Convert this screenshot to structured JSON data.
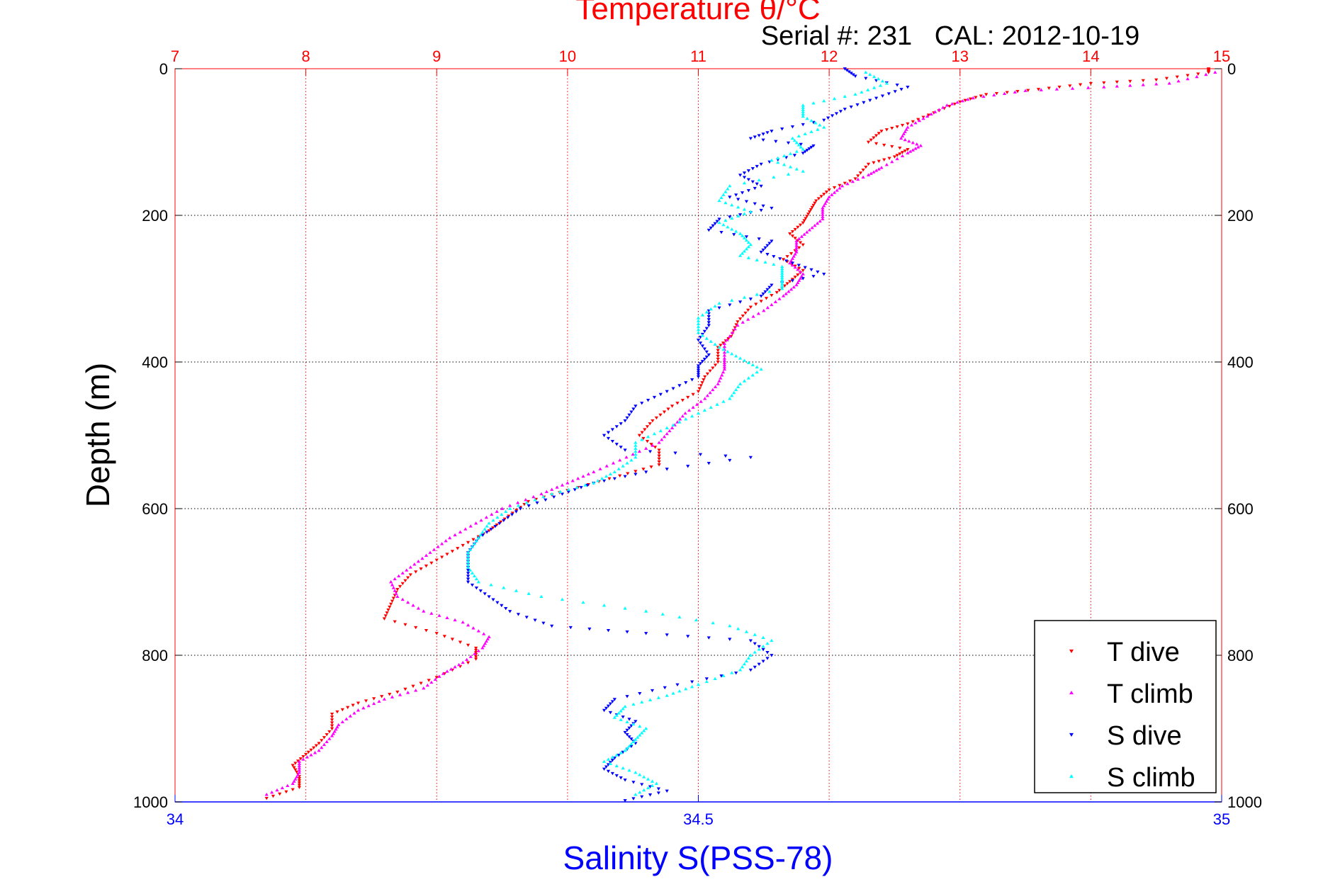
{
  "chart_data": {
    "type": "scatter",
    "title": "Temperature θ/°C",
    "subtitle": "Serial #: 231   CAL: 2012-10-19",
    "ylabel": "Depth (m)",
    "xlabel": "Salinity S(PSS-78)",
    "y_range": [
      0,
      1000
    ],
    "y_reversed": true,
    "y_ticks": [
      0,
      200,
      400,
      600,
      800,
      1000
    ],
    "temperature_axis": {
      "range": [
        7,
        15
      ],
      "ticks": [
        7,
        8,
        9,
        10,
        11,
        12,
        13,
        14,
        15
      ],
      "position": "top",
      "color": "#ff0000"
    },
    "salinity_axis": {
      "range": [
        34,
        35
      ],
      "ticks": [
        34,
        34.5,
        35
      ],
      "tick_labels": [
        "34",
        "34.5",
        "35"
      ],
      "position": "bottom",
      "color": "#0000ff"
    },
    "grid": true,
    "legend_position": "bottom-right",
    "series": [
      {
        "name": "T dive",
        "axis": "temperature",
        "color": "#ff0000",
        "marker": "triangle-down",
        "points": [
          [
            14.9,
            0
          ],
          [
            14.9,
            5
          ],
          [
            14.5,
            15
          ],
          [
            14.0,
            20
          ],
          [
            13.6,
            28
          ],
          [
            13.2,
            35
          ],
          [
            13.0,
            45
          ],
          [
            12.8,
            60
          ],
          [
            12.6,
            75
          ],
          [
            12.4,
            85
          ],
          [
            12.3,
            100
          ],
          [
            12.6,
            110
          ],
          [
            12.5,
            120
          ],
          [
            12.3,
            130
          ],
          [
            12.2,
            150
          ],
          [
            12.0,
            165
          ],
          [
            11.9,
            180
          ],
          [
            11.85,
            195
          ],
          [
            11.8,
            210
          ],
          [
            11.7,
            225
          ],
          [
            11.8,
            240
          ],
          [
            11.65,
            260
          ],
          [
            11.8,
            275
          ],
          [
            11.7,
            290
          ],
          [
            11.6,
            305
          ],
          [
            11.4,
            325
          ],
          [
            11.3,
            345
          ],
          [
            11.25,
            365
          ],
          [
            11.15,
            380
          ],
          [
            11.15,
            400
          ],
          [
            11.05,
            420
          ],
          [
            11.0,
            440
          ],
          [
            10.8,
            460
          ],
          [
            10.65,
            480
          ],
          [
            10.55,
            500
          ],
          [
            10.7,
            520
          ],
          [
            10.7,
            540
          ],
          [
            10.4,
            555
          ],
          [
            10.0,
            575
          ],
          [
            9.7,
            590
          ],
          [
            9.55,
            610
          ],
          [
            9.4,
            630
          ],
          [
            9.2,
            650
          ],
          [
            9.0,
            670
          ],
          [
            8.8,
            690
          ],
          [
            8.7,
            710
          ],
          [
            8.65,
            730
          ],
          [
            8.6,
            750
          ],
          [
            9.0,
            770
          ],
          [
            9.3,
            790
          ],
          [
            9.3,
            805
          ],
          [
            9.0,
            830
          ],
          [
            8.7,
            850
          ],
          [
            8.4,
            865
          ],
          [
            8.2,
            880
          ],
          [
            8.2,
            900
          ],
          [
            8.1,
            920
          ],
          [
            8.0,
            935
          ],
          [
            7.9,
            950
          ],
          [
            7.95,
            965
          ],
          [
            7.95,
            980
          ],
          [
            7.7,
            995
          ]
        ]
      },
      {
        "name": "T climb",
        "axis": "temperature",
        "color": "#ff00ff",
        "marker": "triangle-up",
        "points": [
          [
            14.95,
            5
          ],
          [
            14.6,
            20
          ],
          [
            14.1,
            25
          ],
          [
            13.5,
            30
          ],
          [
            13.1,
            40
          ],
          [
            12.9,
            50
          ],
          [
            12.75,
            65
          ],
          [
            12.6,
            80
          ],
          [
            12.55,
            95
          ],
          [
            12.7,
            105
          ],
          [
            12.6,
            115
          ],
          [
            12.4,
            135
          ],
          [
            12.3,
            145
          ],
          [
            12.1,
            160
          ],
          [
            12.0,
            175
          ],
          [
            11.95,
            190
          ],
          [
            11.95,
            205
          ],
          [
            11.85,
            220
          ],
          [
            11.75,
            235
          ],
          [
            11.75,
            250
          ],
          [
            11.7,
            265
          ],
          [
            11.8,
            280
          ],
          [
            11.75,
            295
          ],
          [
            11.65,
            310
          ],
          [
            11.5,
            330
          ],
          [
            11.3,
            350
          ],
          [
            11.2,
            375
          ],
          [
            11.2,
            395
          ],
          [
            11.2,
            410
          ],
          [
            11.15,
            430
          ],
          [
            11.05,
            450
          ],
          [
            10.9,
            470
          ],
          [
            10.8,
            490
          ],
          [
            10.7,
            510
          ],
          [
            10.45,
            530
          ],
          [
            10.2,
            550
          ],
          [
            10.0,
            565
          ],
          [
            9.8,
            580
          ],
          [
            9.5,
            600
          ],
          [
            9.3,
            620
          ],
          [
            9.1,
            640
          ],
          [
            8.95,
            660
          ],
          [
            8.8,
            680
          ],
          [
            8.65,
            700
          ],
          [
            8.7,
            720
          ],
          [
            8.9,
            740
          ],
          [
            9.2,
            755
          ],
          [
            9.4,
            775
          ],
          [
            9.35,
            790
          ],
          [
            9.2,
            810
          ],
          [
            9.05,
            825
          ],
          [
            8.9,
            845
          ],
          [
            8.6,
            860
          ],
          [
            8.4,
            875
          ],
          [
            8.25,
            895
          ],
          [
            8.2,
            910
          ],
          [
            8.1,
            930
          ],
          [
            7.95,
            945
          ],
          [
            7.95,
            960
          ],
          [
            7.9,
            975
          ],
          [
            7.7,
            990
          ]
        ]
      },
      {
        "name": "S dive",
        "axis": "salinity",
        "color": "#0000ff",
        "marker": "triangle-down",
        "points": [
          [
            34.64,
            0
          ],
          [
            34.65,
            10
          ],
          [
            34.7,
            25
          ],
          [
            34.67,
            40
          ],
          [
            34.64,
            55
          ],
          [
            34.62,
            70
          ],
          [
            34.57,
            85
          ],
          [
            34.55,
            95
          ],
          [
            34.61,
            105
          ],
          [
            34.6,
            115
          ],
          [
            34.56,
            130
          ],
          [
            34.54,
            145
          ],
          [
            34.56,
            160
          ],
          [
            34.53,
            175
          ],
          [
            34.57,
            190
          ],
          [
            34.52,
            205
          ],
          [
            34.51,
            220
          ],
          [
            34.57,
            235
          ],
          [
            34.56,
            250
          ],
          [
            34.59,
            265
          ],
          [
            34.62,
            280
          ],
          [
            34.57,
            295
          ],
          [
            34.56,
            310
          ],
          [
            34.51,
            330
          ],
          [
            34.51,
            350
          ],
          [
            34.5,
            370
          ],
          [
            34.51,
            390
          ],
          [
            34.5,
            405
          ],
          [
            34.5,
            420
          ],
          [
            34.47,
            440
          ],
          [
            34.44,
            460
          ],
          [
            34.43,
            480
          ],
          [
            34.41,
            500
          ],
          [
            34.43,
            520
          ],
          [
            34.55,
            530
          ],
          [
            34.45,
            550
          ],
          [
            34.4,
            565
          ],
          [
            34.37,
            580
          ],
          [
            34.33,
            600
          ],
          [
            34.31,
            620
          ],
          [
            34.29,
            640
          ],
          [
            34.28,
            660
          ],
          [
            34.28,
            680
          ],
          [
            34.28,
            700
          ],
          [
            34.3,
            720
          ],
          [
            34.32,
            740
          ],
          [
            34.36,
            760
          ],
          [
            34.45,
            770
          ],
          [
            34.55,
            780
          ],
          [
            34.57,
            800
          ],
          [
            34.55,
            820
          ],
          [
            34.48,
            840
          ],
          [
            34.42,
            860
          ],
          [
            34.41,
            875
          ],
          [
            34.44,
            890
          ],
          [
            34.43,
            905
          ],
          [
            34.44,
            920
          ],
          [
            34.42,
            940
          ],
          [
            34.41,
            955
          ],
          [
            34.43,
            970
          ],
          [
            34.47,
            985
          ],
          [
            34.43,
            998
          ]
        ]
      },
      {
        "name": "S climb",
        "axis": "salinity",
        "color": "#00ffff",
        "marker": "triangle-up",
        "points": [
          [
            34.66,
            5
          ],
          [
            34.68,
            20
          ],
          [
            34.65,
            35
          ],
          [
            34.6,
            50
          ],
          [
            34.6,
            65
          ],
          [
            34.62,
            80
          ],
          [
            34.59,
            95
          ],
          [
            34.6,
            110
          ],
          [
            34.57,
            125
          ],
          [
            34.6,
            140
          ],
          [
            34.53,
            160
          ],
          [
            34.52,
            180
          ],
          [
            34.55,
            195
          ],
          [
            34.52,
            210
          ],
          [
            34.54,
            225
          ],
          [
            34.55,
            240
          ],
          [
            34.54,
            255
          ],
          [
            34.58,
            270
          ],
          [
            34.58,
            285
          ],
          [
            34.58,
            300
          ],
          [
            34.52,
            320
          ],
          [
            34.5,
            340
          ],
          [
            34.5,
            360
          ],
          [
            34.52,
            380
          ],
          [
            34.54,
            395
          ],
          [
            34.56,
            410
          ],
          [
            34.54,
            430
          ],
          [
            34.53,
            450
          ],
          [
            34.5,
            470
          ],
          [
            34.47,
            490
          ],
          [
            34.44,
            510
          ],
          [
            34.44,
            530
          ],
          [
            34.42,
            550
          ],
          [
            34.4,
            565
          ],
          [
            34.36,
            580
          ],
          [
            34.32,
            600
          ],
          [
            34.3,
            620
          ],
          [
            34.29,
            640
          ],
          [
            34.28,
            660
          ],
          [
            34.28,
            680
          ],
          [
            34.29,
            700
          ],
          [
            34.35,
            720
          ],
          [
            34.45,
            740
          ],
          [
            34.53,
            760
          ],
          [
            34.57,
            780
          ],
          [
            34.55,
            800
          ],
          [
            34.54,
            820
          ],
          [
            34.5,
            840
          ],
          [
            34.47,
            855
          ],
          [
            34.43,
            870
          ],
          [
            34.42,
            885
          ],
          [
            34.45,
            900
          ],
          [
            34.44,
            915
          ],
          [
            34.43,
            930
          ],
          [
            34.41,
            945
          ],
          [
            34.44,
            960
          ],
          [
            34.46,
            975
          ],
          [
            34.44,
            990
          ]
        ]
      }
    ]
  }
}
